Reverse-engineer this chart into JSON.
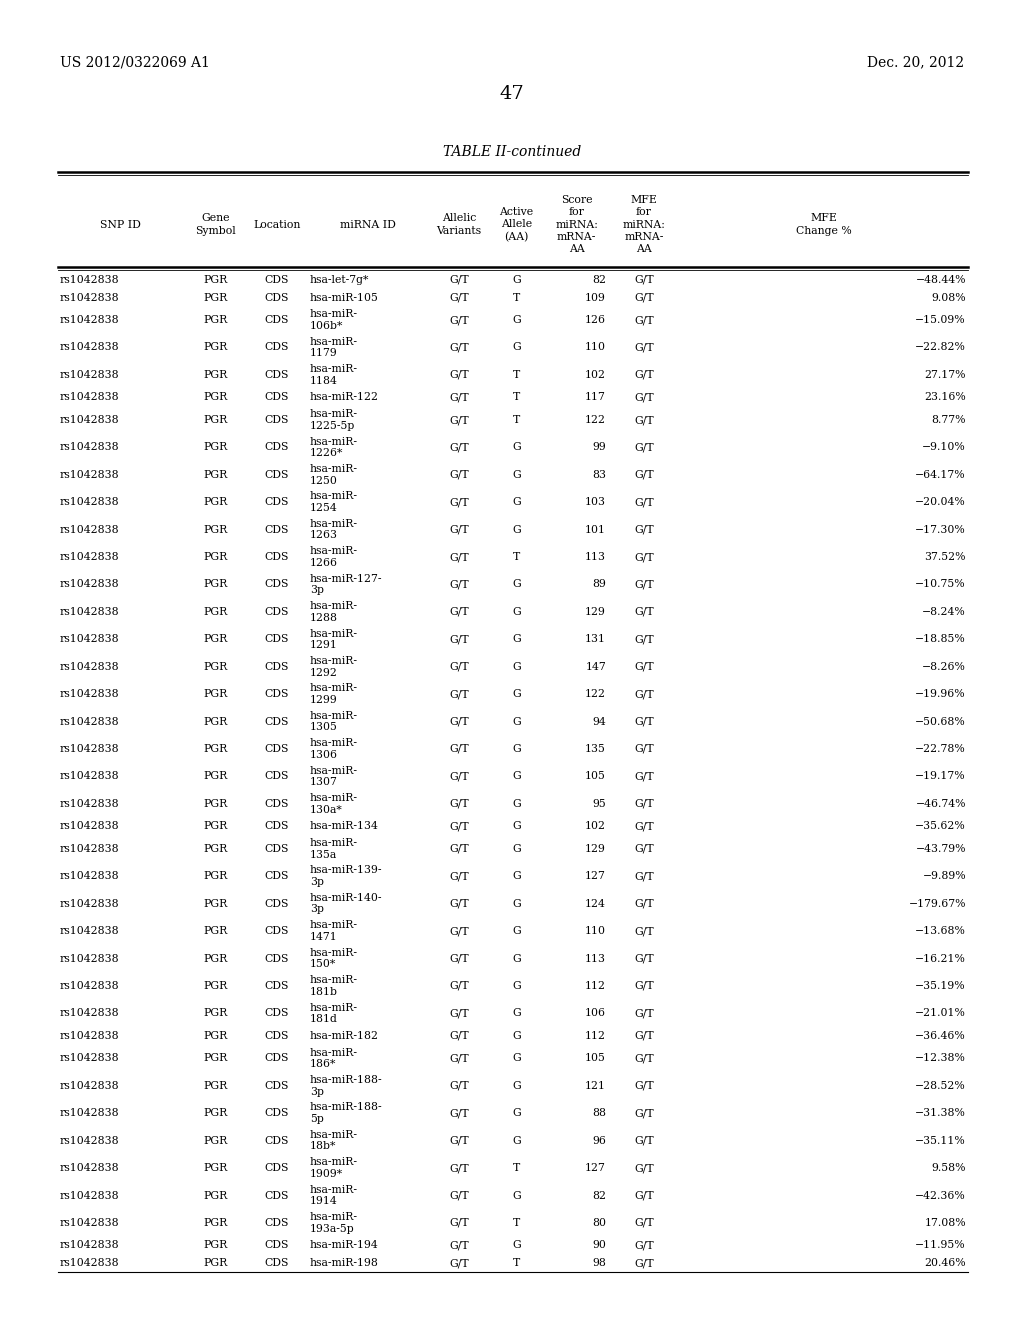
{
  "header_left": "US 2012/0322069 A1",
  "header_right": "Dec. 20, 2012",
  "page_number": "47",
  "table_title": "TABLE II-continued",
  "rows": [
    [
      "rs1042838",
      "PGR",
      "CDS",
      "hsa-let-7g*",
      "G/T",
      "G",
      "82",
      "G/T",
      "−48.44%"
    ],
    [
      "rs1042838",
      "PGR",
      "CDS",
      "hsa-miR-105",
      "G/T",
      "T",
      "109",
      "G/T",
      "9.08%"
    ],
    [
      "rs1042838",
      "PGR",
      "CDS",
      "hsa-miR-\n106b*",
      "G/T",
      "G",
      "126",
      "G/T",
      "−15.09%"
    ],
    [
      "rs1042838",
      "PGR",
      "CDS",
      "hsa-miR-\n1179",
      "G/T",
      "G",
      "110",
      "G/T",
      "−22.82%"
    ],
    [
      "rs1042838",
      "PGR",
      "CDS",
      "hsa-miR-\n1184",
      "G/T",
      "T",
      "102",
      "G/T",
      "27.17%"
    ],
    [
      "rs1042838",
      "PGR",
      "CDS",
      "hsa-miR-122",
      "G/T",
      "T",
      "117",
      "G/T",
      "23.16%"
    ],
    [
      "rs1042838",
      "PGR",
      "CDS",
      "hsa-miR-\n1225-5p",
      "G/T",
      "T",
      "122",
      "G/T",
      "8.77%"
    ],
    [
      "rs1042838",
      "PGR",
      "CDS",
      "hsa-miR-\n1226*",
      "G/T",
      "G",
      "99",
      "G/T",
      "−9.10%"
    ],
    [
      "rs1042838",
      "PGR",
      "CDS",
      "hsa-miR-\n1250",
      "G/T",
      "G",
      "83",
      "G/T",
      "−64.17%"
    ],
    [
      "rs1042838",
      "PGR",
      "CDS",
      "hsa-miR-\n1254",
      "G/T",
      "G",
      "103",
      "G/T",
      "−20.04%"
    ],
    [
      "rs1042838",
      "PGR",
      "CDS",
      "hsa-miR-\n1263",
      "G/T",
      "G",
      "101",
      "G/T",
      "−17.30%"
    ],
    [
      "rs1042838",
      "PGR",
      "CDS",
      "hsa-miR-\n1266",
      "G/T",
      "T",
      "113",
      "G/T",
      "37.52%"
    ],
    [
      "rs1042838",
      "PGR",
      "CDS",
      "hsa-miR-127-\n3p",
      "G/T",
      "G",
      "89",
      "G/T",
      "−10.75%"
    ],
    [
      "rs1042838",
      "PGR",
      "CDS",
      "hsa-miR-\n1288",
      "G/T",
      "G",
      "129",
      "G/T",
      "−8.24%"
    ],
    [
      "rs1042838",
      "PGR",
      "CDS",
      "hsa-miR-\n1291",
      "G/T",
      "G",
      "131",
      "G/T",
      "−18.85%"
    ],
    [
      "rs1042838",
      "PGR",
      "CDS",
      "hsa-miR-\n1292",
      "G/T",
      "G",
      "147",
      "G/T",
      "−8.26%"
    ],
    [
      "rs1042838",
      "PGR",
      "CDS",
      "hsa-miR-\n1299",
      "G/T",
      "G",
      "122",
      "G/T",
      "−19.96%"
    ],
    [
      "rs1042838",
      "PGR",
      "CDS",
      "hsa-miR-\n1305",
      "G/T",
      "G",
      "94",
      "G/T",
      "−50.68%"
    ],
    [
      "rs1042838",
      "PGR",
      "CDS",
      "hsa-miR-\n1306",
      "G/T",
      "G",
      "135",
      "G/T",
      "−22.78%"
    ],
    [
      "rs1042838",
      "PGR",
      "CDS",
      "hsa-miR-\n1307",
      "G/T",
      "G",
      "105",
      "G/T",
      "−19.17%"
    ],
    [
      "rs1042838",
      "PGR",
      "CDS",
      "hsa-miR-\n130a*",
      "G/T",
      "G",
      "95",
      "G/T",
      "−46.74%"
    ],
    [
      "rs1042838",
      "PGR",
      "CDS",
      "hsa-miR-134",
      "G/T",
      "G",
      "102",
      "G/T",
      "−35.62%"
    ],
    [
      "rs1042838",
      "PGR",
      "CDS",
      "hsa-miR-\n135a",
      "G/T",
      "G",
      "129",
      "G/T",
      "−43.79%"
    ],
    [
      "rs1042838",
      "PGR",
      "CDS",
      "hsa-miR-139-\n3p",
      "G/T",
      "G",
      "127",
      "G/T",
      "−9.89%"
    ],
    [
      "rs1042838",
      "PGR",
      "CDS",
      "hsa-miR-140-\n3p",
      "G/T",
      "G",
      "124",
      "G/T",
      "−179.67%"
    ],
    [
      "rs1042838",
      "PGR",
      "CDS",
      "hsa-miR-\n1471",
      "G/T",
      "G",
      "110",
      "G/T",
      "−13.68%"
    ],
    [
      "rs1042838",
      "PGR",
      "CDS",
      "hsa-miR-\n150*",
      "G/T",
      "G",
      "113",
      "G/T",
      "−16.21%"
    ],
    [
      "rs1042838",
      "PGR",
      "CDS",
      "hsa-miR-\n181b",
      "G/T",
      "G",
      "112",
      "G/T",
      "−35.19%"
    ],
    [
      "rs1042838",
      "PGR",
      "CDS",
      "hsa-miR-\n181d",
      "G/T",
      "G",
      "106",
      "G/T",
      "−21.01%"
    ],
    [
      "rs1042838",
      "PGR",
      "CDS",
      "hsa-miR-182",
      "G/T",
      "G",
      "112",
      "G/T",
      "−36.46%"
    ],
    [
      "rs1042838",
      "PGR",
      "CDS",
      "hsa-miR-\n186*",
      "G/T",
      "G",
      "105",
      "G/T",
      "−12.38%"
    ],
    [
      "rs1042838",
      "PGR",
      "CDS",
      "hsa-miR-188-\n3p",
      "G/T",
      "G",
      "121",
      "G/T",
      "−28.52%"
    ],
    [
      "rs1042838",
      "PGR",
      "CDS",
      "hsa-miR-188-\n5p",
      "G/T",
      "G",
      "88",
      "G/T",
      "−31.38%"
    ],
    [
      "rs1042838",
      "PGR",
      "CDS",
      "hsa-miR-\n18b*",
      "G/T",
      "G",
      "96",
      "G/T",
      "−35.11%"
    ],
    [
      "rs1042838",
      "PGR",
      "CDS",
      "hsa-miR-\n1909*",
      "G/T",
      "T",
      "127",
      "G/T",
      "9.58%"
    ],
    [
      "rs1042838",
      "PGR",
      "CDS",
      "hsa-miR-\n1914",
      "G/T",
      "G",
      "82",
      "G/T",
      "−42.36%"
    ],
    [
      "rs1042838",
      "PGR",
      "CDS",
      "hsa-miR-\n193a-5p",
      "G/T",
      "T",
      "80",
      "G/T",
      "17.08%"
    ],
    [
      "rs1042838",
      "PGR",
      "CDS",
      "hsa-miR-194",
      "G/T",
      "G",
      "90",
      "G/T",
      "−11.95%"
    ],
    [
      "rs1042838",
      "PGR",
      "CDS",
      "hsa-miR-198",
      "G/T",
      "T",
      "98",
      "G/T",
      "20.46%"
    ]
  ],
  "bg_color": "#ffffff",
  "text_color": "#000000"
}
